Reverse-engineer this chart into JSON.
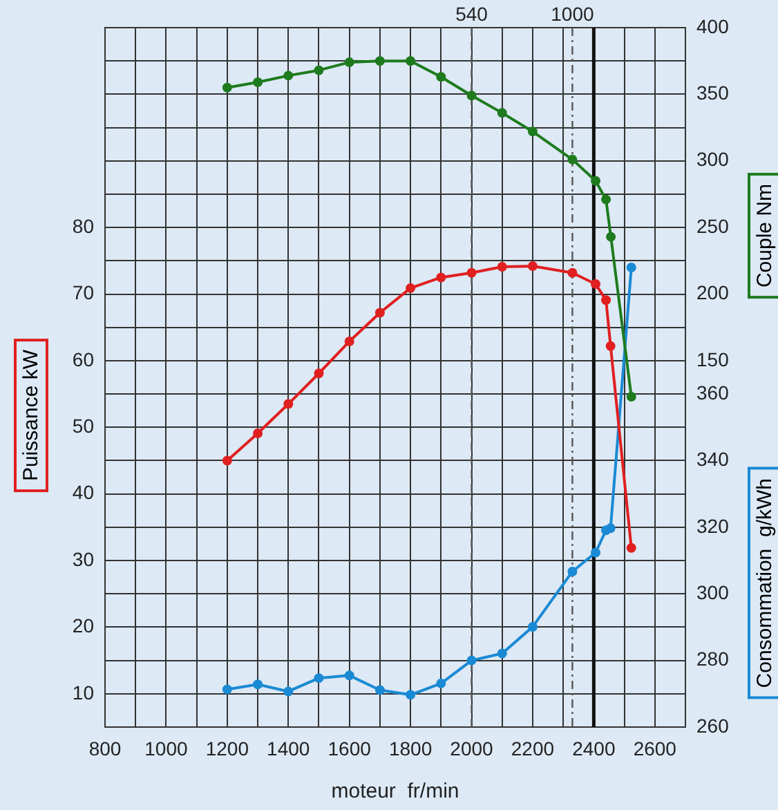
{
  "chart_data": {
    "type": "line",
    "xlabel": "moteur  fr/min",
    "ylabel": "Puissance kW",
    "y2label": "Couple Nm",
    "y3label": "Consommation  g/kWh",
    "xlim": [
      800,
      2700
    ],
    "xticks": [
      800,
      {
        "value": 900,
        "label": null
      },
      1000,
      {
        "value": 1100,
        "label": null
      },
      1200,
      {
        "value": 1300,
        "label": null
      },
      1400,
      {
        "value": 1500,
        "label": null
      },
      1600,
      {
        "value": 1700,
        "label": null
      },
      1800,
      {
        "value": 1900,
        "label": null
      },
      2000,
      {
        "value": 2100,
        "label": null
      },
      2200,
      {
        "value": 2300,
        "label": null
      },
      2400,
      {
        "value": 2500,
        "label": null
      },
      2600,
      {
        "value": 2700,
        "label": null
      }
    ],
    "ylim": [
      5,
      110
    ],
    "yticks": [
      {
        "value": 5,
        "label": null
      },
      10,
      {
        "value": 15,
        "label": null
      },
      20,
      {
        "value": 25,
        "label": null
      },
      30,
      {
        "value": 35,
        "label": null
      },
      40,
      {
        "value": 45,
        "label": null
      },
      50,
      {
        "value": 55,
        "label": null
      },
      60,
      {
        "value": 65,
        "label": null
      },
      70,
      {
        "value": 75,
        "label": null
      },
      80,
      {
        "value": 85,
        "label": null
      },
      {
        "value": 90,
        "label": null
      },
      {
        "value": 95,
        "label": null
      },
      {
        "value": 100,
        "label": null
      },
      {
        "value": 105,
        "label": null
      },
      {
        "value": 110,
        "label": null
      }
    ],
    "y2lim": [
      -125,
      400
    ],
    "y2ticks": [
      150,
      200,
      250,
      300,
      350,
      400
    ],
    "y3lim": [
      260,
      470
    ],
    "y3ticks": [
      260,
      280,
      300,
      320,
      340,
      360
    ],
    "annotations": [
      "540",
      "1000"
    ],
    "grid": true,
    "legend": false,
    "marker": "circle",
    "line_style": "solid",
    "ref_lines": [
      {
        "axis": "x",
        "value": 2000,
        "line_style": "dashed",
        "color": "#555555"
      },
      {
        "axis": "x",
        "value": 2330,
        "line_style": "dotted",
        "color": "#555555"
      },
      {
        "axis": "x",
        "value": 2400,
        "color": "#111111"
      }
    ],
    "series": [
      {
        "color": "#e02020",
        "axis": "y",
        "x": [
          1200,
          1300,
          1400,
          1500,
          1600,
          1700,
          1800,
          1900,
          2000,
          2100,
          2200,
          2330,
          2406,
          2440,
          2455,
          2523
        ],
        "values": [
          45,
          49.1,
          53.5,
          58.1,
          62.9,
          67.2,
          70.9,
          72.5,
          73.2,
          74.1,
          74.2,
          73.2,
          71.5,
          69.1,
          62.2,
          31.9
        ]
      },
      {
        "color": "#1e7b1e",
        "axis": "y2",
        "x": [
          1200,
          1300,
          1400,
          1500,
          1600,
          1700,
          1800,
          1900,
          2000,
          2100,
          2200,
          2330,
          2406,
          2440,
          2456,
          2523
        ],
        "values": [
          355,
          359,
          364,
          368,
          374,
          375,
          375,
          363,
          349,
          336,
          322,
          301,
          285,
          271,
          243,
          123
        ]
      },
      {
        "color": "#1a8ad4",
        "axis": "y3",
        "x": [
          1200,
          1300,
          1400,
          1500,
          1600,
          1700,
          1800,
          1900,
          2000,
          2100,
          2200,
          2330,
          2406,
          2440,
          2455,
          2523
        ],
        "values": [
          271.3,
          272.8,
          270.7,
          274.7,
          275.5,
          271.1,
          269.7,
          273.1,
          280,
          282.1,
          290.1,
          306.7,
          312.4,
          319.1,
          319.7,
          398
        ]
      }
    ]
  }
}
